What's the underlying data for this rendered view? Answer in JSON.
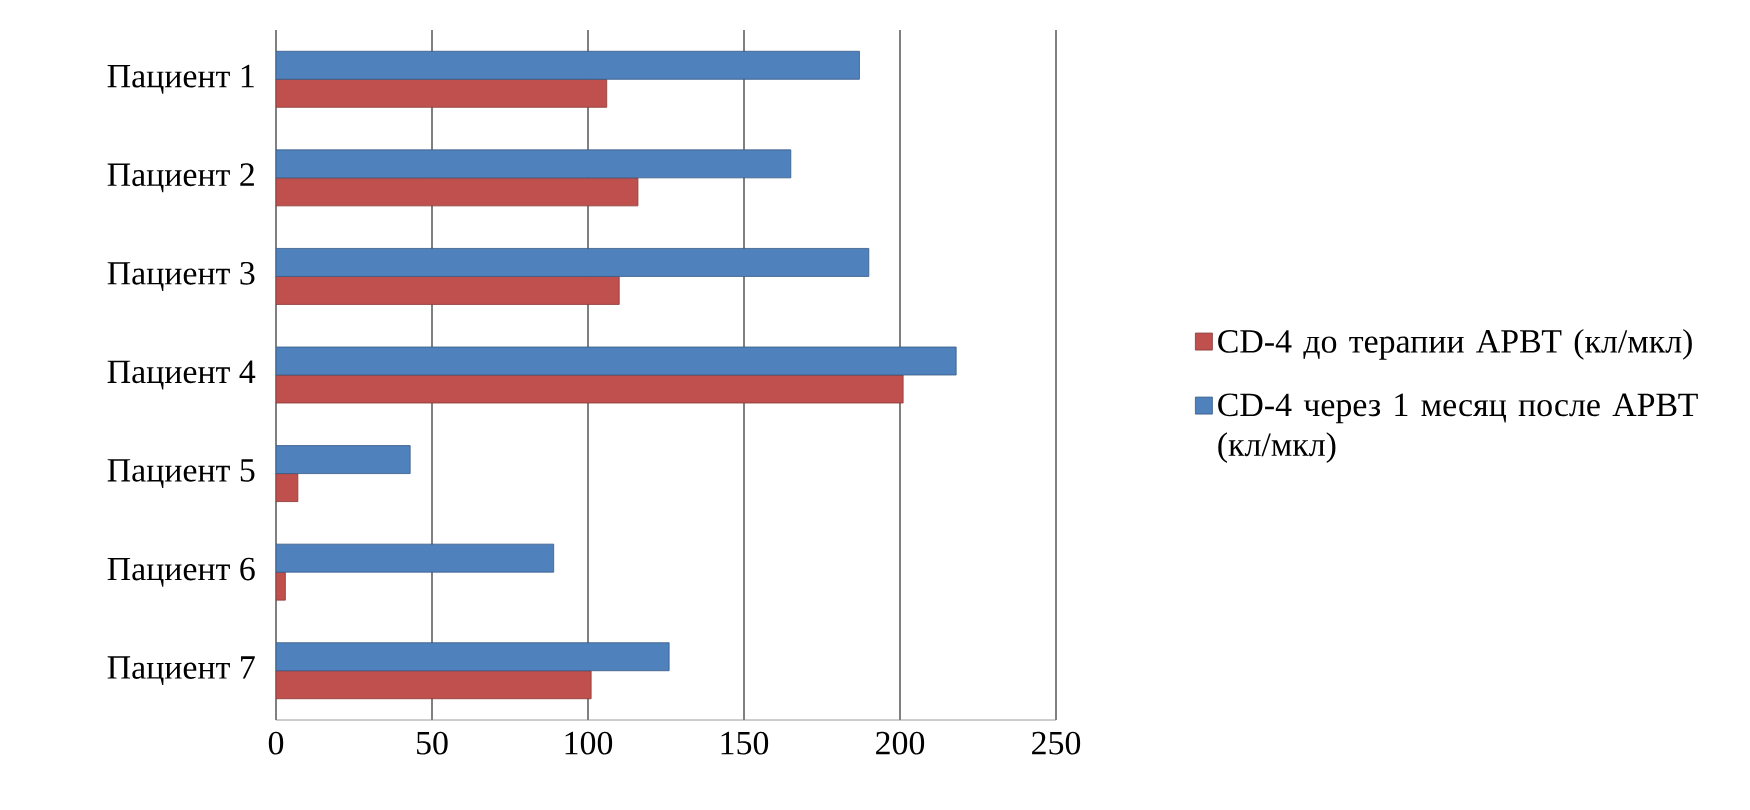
{
  "chart_data": {
    "type": "bar",
    "orientation": "horizontal",
    "categories": [
      "Пациент 1",
      "Пациент 2",
      "Пациент 3",
      "Пациент 4",
      "Пациент 5",
      "Пациент 6",
      "Пациент 7"
    ],
    "series": [
      {
        "name": "CD-4 до терапии АРВТ (кл/мкл)",
        "color": "#c0504d",
        "values": [
          106,
          116,
          110,
          201,
          7,
          3,
          101
        ]
      },
      {
        "name": "CD-4 через 1 месяц после АРВТ (кл/мкл)",
        "color": "#4f81bd",
        "values": [
          187,
          165,
          190,
          218,
          43,
          89,
          126
        ]
      }
    ],
    "xlim": [
      0,
      250
    ],
    "xticks": [
      0,
      50,
      100,
      150,
      200,
      250
    ],
    "grid": "x",
    "legend": "right"
  }
}
